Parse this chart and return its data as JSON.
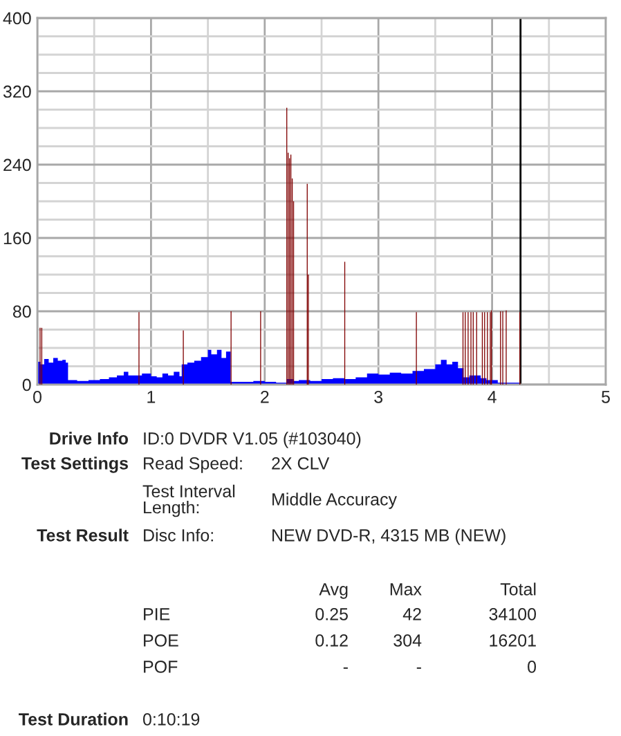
{
  "chart_data": {
    "type": "area",
    "xlim": [
      0,
      5
    ],
    "ylim": [
      0,
      400
    ],
    "xticks": [
      0,
      {
        "value": 0.5,
        "label": null
      },
      1,
      {
        "value": 1.5,
        "label": null
      },
      2,
      {
        "value": 2.5,
        "label": null
      },
      3,
      {
        "value": 3.5,
        "label": null
      },
      4,
      {
        "value": 4.5,
        "label": null
      },
      5
    ],
    "yticks": [
      0,
      {
        "value": 20,
        "label": null
      },
      {
        "value": 40,
        "label": null
      },
      {
        "value": 60,
        "label": null
      },
      80,
      {
        "value": 100,
        "label": null
      },
      {
        "value": 120,
        "label": null
      },
      {
        "value": 140,
        "label": null
      },
      160,
      {
        "value": 180,
        "label": null
      },
      {
        "value": 200,
        "label": null
      },
      {
        "value": 220,
        "label": null
      },
      240,
      {
        "value": 260,
        "label": null
      },
      {
        "value": 280,
        "label": null
      },
      {
        "value": 300,
        "label": null
      },
      320,
      {
        "value": 340,
        "label": null
      },
      {
        "value": 360,
        "label": null
      },
      {
        "value": 380,
        "label": null
      },
      400
    ],
    "grid": true,
    "series": [
      {
        "color": "#0000ff",
        "x": [
          0,
          0.03,
          0.06,
          0.1,
          0.14,
          0.18,
          0.22,
          0.25,
          0.27,
          0.35,
          0.45,
          0.55,
          0.63,
          0.7,
          0.76,
          0.8,
          0.88,
          0.92,
          1.0,
          1.05,
          1.1,
          1.15,
          1.2,
          1.25,
          1.27,
          1.32,
          1.38,
          1.44,
          1.5,
          1.53,
          1.58,
          1.62,
          1.66,
          1.7,
          1.8,
          1.9,
          2.0,
          2.1,
          2.19,
          2.25,
          2.3,
          2.4,
          2.5,
          2.6,
          2.7,
          2.8,
          2.9,
          3.0,
          3.1,
          3.2,
          3.3,
          3.4,
          3.5,
          3.55,
          3.6,
          3.65,
          3.7,
          3.75,
          3.8,
          3.9,
          3.95,
          4.05,
          4.15,
          4.24
        ],
        "values": [
          25,
          22,
          28,
          24,
          29,
          26,
          27,
          24,
          5,
          4,
          5,
          6,
          8,
          10,
          14,
          10,
          10,
          12,
          9,
          8,
          12,
          10,
          14,
          9,
          22,
          24,
          26,
          30,
          38,
          33,
          38,
          29,
          36,
          3,
          3,
          4,
          3,
          2,
          6,
          4,
          5,
          4,
          6,
          7,
          6,
          8,
          12,
          11,
          13,
          12,
          15,
          17,
          22,
          27,
          22,
          25,
          18,
          8,
          10,
          7,
          5,
          2,
          2,
          0
        ]
      },
      {
        "type": "bar",
        "color": "#800000",
        "x": [
          0.02,
          0.035,
          0.89,
          1.28,
          1.7,
          1.96,
          2.19,
          2.202,
          2.214,
          2.226,
          2.238,
          2.25,
          2.37,
          2.38,
          2.7,
          3.33,
          3.74,
          3.76,
          3.785,
          3.81,
          3.83,
          3.86,
          3.91,
          3.93,
          3.955,
          3.98,
          3.99,
          4.07,
          4.09,
          4.12,
          4.24
        ],
        "values": [
          62,
          62,
          79,
          59,
          80,
          80,
          302,
          253,
          247,
          251,
          225,
          200,
          219,
          120,
          134,
          79,
          79,
          79,
          79,
          79,
          79,
          79,
          79,
          79,
          79,
          79,
          81,
          80,
          80,
          81,
          79
        ]
      }
    ],
    "ref_lines": [
      {
        "axis": "x",
        "value": 4.25,
        "color": "#000000"
      }
    ],
    "annotations": [
      "Drive Info",
      "ID:0 DVDR V1.05 (#103040)",
      "Test Settings",
      "Read Speed:",
      "2X CLV",
      "Test Interval\nLength:",
      "Middle Accuracy",
      "Test Result",
      "Disc Info:",
      "NEW DVD-R, 4315 MB (NEW)",
      "Avg",
      "Max",
      "Total",
      "PIE",
      "0.25",
      "42",
      "34100",
      "POE",
      "0.12",
      "304",
      "16201",
      "POF",
      "-",
      "-",
      "0",
      "Test Duration",
      "0:10:19"
    ]
  }
}
